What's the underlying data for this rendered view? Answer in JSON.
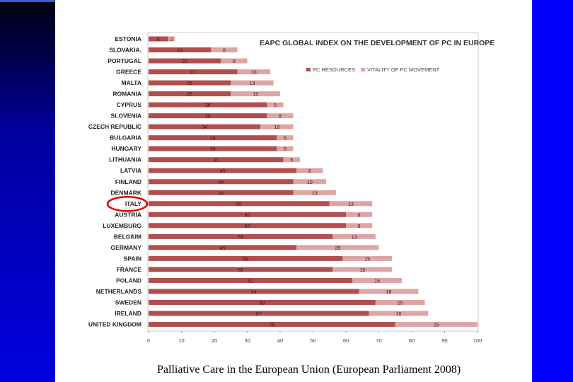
{
  "caption": "Palliative Care in the European Union (European Parliament  2008)",
  "highlight_country": "ITALY",
  "colors": {
    "resources": "#b24e4e",
    "vitality": "#dea5a5",
    "highlight": "#e00000",
    "sidebar_dark": "#000030",
    "sidebar_blue": "#0000ff"
  },
  "chart_data": {
    "type": "bar",
    "orientation": "horizontal",
    "stacked": true,
    "title": "EAPC GLOBAL INDEX ON THE DEVELOPMENT OF PC IN EUROPE",
    "legend_position": "top-right",
    "grid": false,
    "xlim": [
      0,
      100
    ],
    "x_ticks": [
      0,
      10,
      20,
      30,
      40,
      50,
      60,
      70,
      80,
      90,
      100
    ],
    "categories": [
      "ESTONIA",
      "SLOVAKIA.",
      "PORTUGAL",
      "GREECE",
      "MALTA",
      "ROMANIA",
      "CYPRUS",
      "SLOVENIA",
      "CZECH REPUBLIC",
      "BULGARIA",
      "HUNGARY",
      "LITHUANIA",
      "LATVIA",
      "FINLAND",
      "DENMARK",
      "ITALY",
      "AUSTRIA",
      "LUXEMBURG",
      "BELGIUM",
      "GERMANY",
      "SPAIN",
      "FRANCE",
      "POLAND",
      "NETHERLANDS",
      "SWEDEN",
      "IRELAND",
      "UNITED KINGDOM"
    ],
    "series": [
      {
        "name": "PC RESOURCES",
        "values": [
          6,
          19,
          22,
          27,
          25,
          25,
          36,
          36,
          34,
          39,
          39,
          41,
          45,
          44,
          44,
          55,
          60,
          60,
          56,
          45,
          59,
          56,
          62,
          64,
          69,
          67,
          75
        ],
        "labels": [
          "6",
          "19",
          "22",
          "27",
          "25",
          "25",
          "36",
          "36",
          "34",
          "39",
          "39",
          "41",
          "45",
          "44",
          "44",
          "55",
          "60",
          "60",
          "56",
          "45",
          "59",
          "56",
          "62",
          "64",
          "69",
          "67",
          "75"
        ]
      },
      {
        "name": "VITALITY OF PC MOVEMENT",
        "values": [
          2,
          8,
          8,
          10,
          13,
          15,
          5,
          8,
          10,
          5,
          5,
          5,
          8,
          10,
          13,
          13,
          8,
          8,
          13,
          25,
          15,
          18,
          15,
          18,
          15,
          18,
          25
        ],
        "labels": [
          "2",
          "8",
          "8",
          "10",
          "13",
          "15",
          "5",
          "8",
          "10",
          "5",
          "5",
          "5",
          "8",
          "10",
          "13",
          "13",
          "8",
          "8",
          "13",
          "25",
          "15",
          "18",
          "15",
          "18",
          "15",
          "18",
          "25"
        ]
      }
    ]
  }
}
